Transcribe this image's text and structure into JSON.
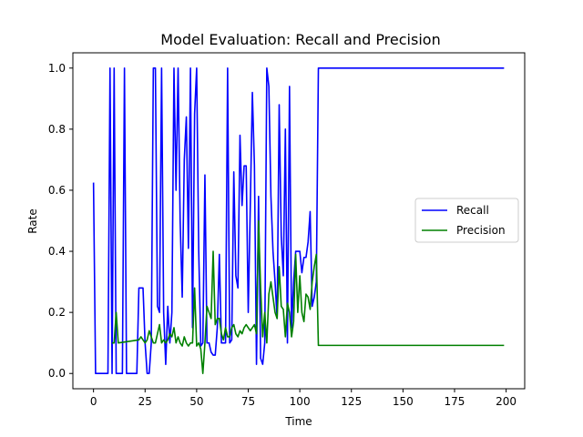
{
  "chart_data": {
    "type": "line",
    "title": "Model Evaluation: Recall and Precision",
    "xlabel": "Time",
    "ylabel": "Rate",
    "xlim": [
      -10,
      209
    ],
    "ylim": [
      -0.05,
      1.05
    ],
    "xticks": [
      0,
      25,
      50,
      75,
      100,
      125,
      150,
      175,
      200
    ],
    "yticks": [
      0.0,
      0.2,
      0.4,
      0.6,
      0.8,
      1.0
    ],
    "xtick_labels": [
      "0",
      "25",
      "50",
      "75",
      "100",
      "125",
      "150",
      "175",
      "200"
    ],
    "ytick_labels": [
      "0.0",
      "0.2",
      "0.4",
      "0.6",
      "0.8",
      "1.0"
    ],
    "grid": false,
    "legend_position": "center-right",
    "series": [
      {
        "name": "Recall",
        "color": "#0000ff",
        "points": [
          [
            0,
            0.625
          ],
          [
            1,
            0
          ],
          [
            2,
            0
          ],
          [
            3,
            0
          ],
          [
            4,
            0
          ],
          [
            5,
            0
          ],
          [
            6,
            0
          ],
          [
            7,
            0
          ],
          [
            8,
            1.0
          ],
          [
            9,
            0
          ],
          [
            10,
            1.0
          ],
          [
            11,
            0
          ],
          [
            12,
            0
          ],
          [
            13,
            0
          ],
          [
            14,
            0
          ],
          [
            15,
            1.0
          ],
          [
            16,
            0
          ],
          [
            17,
            0
          ],
          [
            18,
            0
          ],
          [
            19,
            0
          ],
          [
            20,
            0
          ],
          [
            21,
            0
          ],
          [
            22,
            0.28
          ],
          [
            23,
            0.28
          ],
          [
            24,
            0.28
          ],
          [
            25,
            0.1
          ],
          [
            26,
            0
          ],
          [
            27,
            0
          ],
          [
            28,
            0.1
          ],
          [
            29,
            1.0
          ],
          [
            30,
            1.0
          ],
          [
            31,
            0.22
          ],
          [
            32,
            0.2
          ],
          [
            33,
            1.0
          ],
          [
            34,
            0.2
          ],
          [
            35,
            0.03
          ],
          [
            36,
            0.22
          ],
          [
            37,
            0.1
          ],
          [
            38,
            0.2
          ],
          [
            39,
            1.0
          ],
          [
            40,
            0.6
          ],
          [
            41,
            1.0
          ],
          [
            42,
            0.5
          ],
          [
            43,
            0.25
          ],
          [
            44,
            0.7
          ],
          [
            45,
            0.84
          ],
          [
            46,
            0.41
          ],
          [
            47,
            1.0
          ],
          [
            48,
            0.15
          ],
          [
            49,
            0.85
          ],
          [
            50,
            1.0
          ],
          [
            51,
            0.4
          ],
          [
            52,
            0.09
          ],
          [
            53,
            0.1
          ],
          [
            54,
            0.65
          ],
          [
            55,
            0.1
          ],
          [
            56,
            0.1
          ],
          [
            57,
            0.07
          ],
          [
            58,
            0.06
          ],
          [
            59,
            0.06
          ],
          [
            60,
            0.15
          ],
          [
            61,
            0.39
          ],
          [
            62,
            0.1
          ],
          [
            63,
            0.1
          ],
          [
            64,
            0.1
          ],
          [
            65,
            1.0
          ],
          [
            66,
            0.1
          ],
          [
            67,
            0.11
          ],
          [
            68,
            0.66
          ],
          [
            69,
            0.32
          ],
          [
            70,
            0.28
          ],
          [
            71,
            0.78
          ],
          [
            72,
            0.55
          ],
          [
            73,
            0.68
          ],
          [
            74,
            0.68
          ],
          [
            75,
            0.2
          ],
          [
            76,
            0.55
          ],
          [
            77,
            0.92
          ],
          [
            78,
            0.68
          ],
          [
            79,
            0.03
          ],
          [
            80,
            0.58
          ],
          [
            81,
            0.05
          ],
          [
            82,
            0.03
          ],
          [
            83,
            0.1
          ],
          [
            84,
            1.0
          ],
          [
            85,
            0.94
          ],
          [
            86,
            0.58
          ],
          [
            87,
            0.4
          ],
          [
            88,
            0.3
          ],
          [
            89,
            0.18
          ],
          [
            90,
            0.88
          ],
          [
            91,
            0.45
          ],
          [
            92,
            0.32
          ],
          [
            93,
            0.8
          ],
          [
            94,
            0.1
          ],
          [
            95,
            0.94
          ],
          [
            96,
            0.15
          ],
          [
            97,
            0.3
          ],
          [
            98,
            0.4
          ],
          [
            99,
            0.4
          ],
          [
            100,
            0.4
          ],
          [
            101,
            0.33
          ],
          [
            102,
            0.38
          ],
          [
            103,
            0.38
          ],
          [
            104,
            0.43
          ],
          [
            105,
            0.53
          ],
          [
            106,
            0.22
          ],
          [
            107,
            0.25
          ],
          [
            108,
            0.3
          ],
          [
            109,
            1.0
          ],
          [
            110,
            1.0
          ],
          [
            125,
            1.0
          ],
          [
            150,
            1.0
          ],
          [
            175,
            1.0
          ],
          [
            199,
            1.0
          ]
        ]
      },
      {
        "name": "Precision",
        "color": "#008000",
        "points": [
          [
            9,
            0.1
          ],
          [
            10,
            0.1
          ],
          [
            11,
            0.2
          ],
          [
            12,
            0.1
          ],
          [
            22,
            0.11
          ],
          [
            23,
            0.12
          ],
          [
            24,
            0.11
          ],
          [
            25,
            0.1
          ],
          [
            26,
            0.11
          ],
          [
            27,
            0.14
          ],
          [
            28,
            0.12
          ],
          [
            29,
            0.1
          ],
          [
            30,
            0.1
          ],
          [
            31,
            0.13
          ],
          [
            32,
            0.16
          ],
          [
            33,
            0.1
          ],
          [
            34,
            0.11
          ],
          [
            35,
            0.1
          ],
          [
            36,
            0.11
          ],
          [
            37,
            0.13
          ],
          [
            38,
            0.12
          ],
          [
            39,
            0.15
          ],
          [
            40,
            0.1
          ],
          [
            41,
            0.12
          ],
          [
            42,
            0.1
          ],
          [
            43,
            0.09
          ],
          [
            44,
            0.12
          ],
          [
            45,
            0.1
          ],
          [
            46,
            0.09
          ],
          [
            47,
            0.1
          ],
          [
            48,
            0.1
          ],
          [
            49,
            0.28
          ],
          [
            50,
            0.09
          ],
          [
            51,
            0.1
          ],
          [
            52,
            0.08
          ],
          [
            53,
            0.0
          ],
          [
            54,
            0.1
          ],
          [
            55,
            0.22
          ],
          [
            56,
            0.2
          ],
          [
            57,
            0.18
          ],
          [
            58,
            0.4
          ],
          [
            59,
            0.16
          ],
          [
            60,
            0.18
          ],
          [
            61,
            0.18
          ],
          [
            62,
            0.13
          ],
          [
            63,
            0.11
          ],
          [
            64,
            0.15
          ],
          [
            65,
            0.12
          ],
          [
            66,
            0.12
          ],
          [
            67,
            0.15
          ],
          [
            68,
            0.16
          ],
          [
            69,
            0.13
          ],
          [
            70,
            0.12
          ],
          [
            71,
            0.14
          ],
          [
            72,
            0.13
          ],
          [
            73,
            0.15
          ],
          [
            74,
            0.16
          ],
          [
            75,
            0.15
          ],
          [
            76,
            0.14
          ],
          [
            77,
            0.15
          ],
          [
            78,
            0.16
          ],
          [
            79,
            0.13
          ],
          [
            80,
            0.5
          ],
          [
            81,
            0.28
          ],
          [
            82,
            0.12
          ],
          [
            83,
            0.2
          ],
          [
            84,
            0.1
          ],
          [
            85,
            0.26
          ],
          [
            86,
            0.3
          ],
          [
            87,
            0.25
          ],
          [
            88,
            0.2
          ],
          [
            89,
            0.18
          ],
          [
            90,
            0.35
          ],
          [
            91,
            0.22
          ],
          [
            92,
            0.21
          ],
          [
            93,
            0.12
          ],
          [
            94,
            0.23
          ],
          [
            95,
            0.2
          ],
          [
            96,
            0.12
          ],
          [
            97,
            0.17
          ],
          [
            98,
            0.39
          ],
          [
            99,
            0.2
          ],
          [
            100,
            0.32
          ],
          [
            101,
            0.2
          ],
          [
            102,
            0.17
          ],
          [
            103,
            0.26
          ],
          [
            104,
            0.25
          ],
          [
            105,
            0.21
          ],
          [
            106,
            0.3
          ],
          [
            107,
            0.35
          ],
          [
            108,
            0.39
          ],
          [
            109,
            0.092
          ],
          [
            110,
            0.092
          ],
          [
            125,
            0.092
          ],
          [
            150,
            0.092
          ],
          [
            175,
            0.092
          ],
          [
            199,
            0.092
          ]
        ]
      }
    ]
  }
}
